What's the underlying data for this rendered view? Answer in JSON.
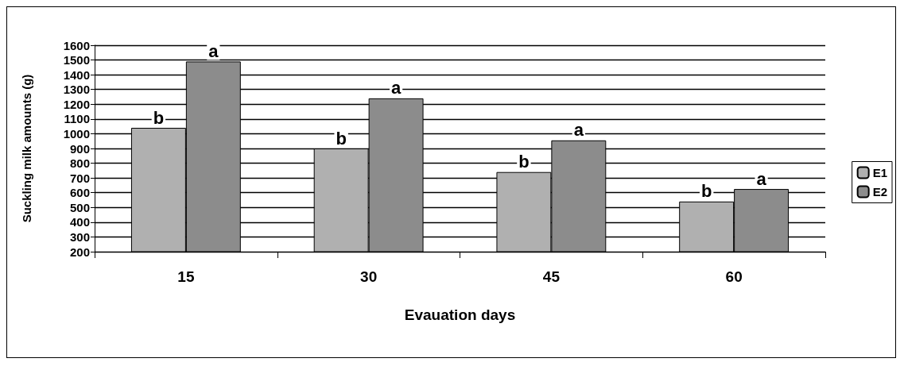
{
  "chart_data": {
    "type": "bar",
    "xlabel": "Evauation days",
    "ylabel": "Suckling milk amounts (g)",
    "categories": [
      "15",
      "30",
      "45",
      "60"
    ],
    "series": [
      {
        "name": "E1",
        "color": "#b0b0b0",
        "values": [
          1040,
          900,
          740,
          540
        ]
      },
      {
        "name": "E2",
        "color": "#8c8c8c",
        "values": [
          1490,
          1240,
          955,
          625
        ]
      }
    ],
    "ylim": [
      200,
      1600
    ],
    "yticks": [
      200,
      300,
      400,
      500,
      600,
      700,
      800,
      900,
      1000,
      1100,
      1200,
      1300,
      1400,
      1500,
      1600
    ],
    "grid": "y",
    "legend": "right",
    "annotations": [
      {
        "text": "b",
        "x": "15",
        "y": 1040
      },
      {
        "text": "a",
        "x": "15",
        "y": 1490
      },
      {
        "text": "b",
        "x": "30",
        "y": 900
      },
      {
        "text": "a",
        "x": "30",
        "y": 1240
      },
      {
        "text": "b",
        "x": "45",
        "y": 740
      },
      {
        "text": "a",
        "x": "45",
        "y": 955
      },
      {
        "text": "b",
        "x": "60",
        "y": 540
      },
      {
        "text": "a",
        "x": "60",
        "y": 625
      }
    ]
  }
}
